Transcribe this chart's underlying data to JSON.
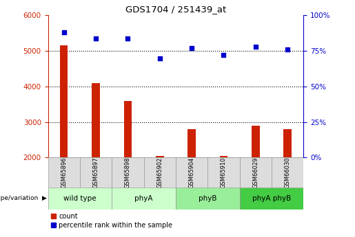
{
  "title": "GDS1704 / 251439_at",
  "samples": [
    "GSM65896",
    "GSM65897",
    "GSM65898",
    "GSM65902",
    "GSM65904",
    "GSM65910",
    "GSM66029",
    "GSM66030"
  ],
  "counts": [
    5150,
    4100,
    3600,
    2050,
    2800,
    2050,
    2900,
    2800
  ],
  "percentiles": [
    88,
    84,
    84,
    70,
    77,
    72,
    78,
    76
  ],
  "groups": [
    {
      "label": "wild type",
      "start": 0,
      "end": 2,
      "color": "#ccffcc"
    },
    {
      "label": "phyA",
      "start": 2,
      "end": 4,
      "color": "#ccffcc"
    },
    {
      "label": "phyB",
      "start": 4,
      "end": 6,
      "color": "#99ee99"
    },
    {
      "label": "phyA phyB",
      "start": 6,
      "end": 8,
      "color": "#44cc44"
    }
  ],
  "ylim_left": [
    2000,
    6000
  ],
  "ylim_right": [
    0,
    100
  ],
  "yticks_left": [
    2000,
    3000,
    4000,
    5000,
    6000
  ],
  "yticks_right": [
    0,
    25,
    50,
    75,
    100
  ],
  "bar_color": "#cc2200",
  "dot_color": "#0000cc",
  "background_color": "#ffffff",
  "legend_count_label": "count",
  "legend_percentile_label": "percentile rank within the sample",
  "genotype_label": "genotype/variation"
}
